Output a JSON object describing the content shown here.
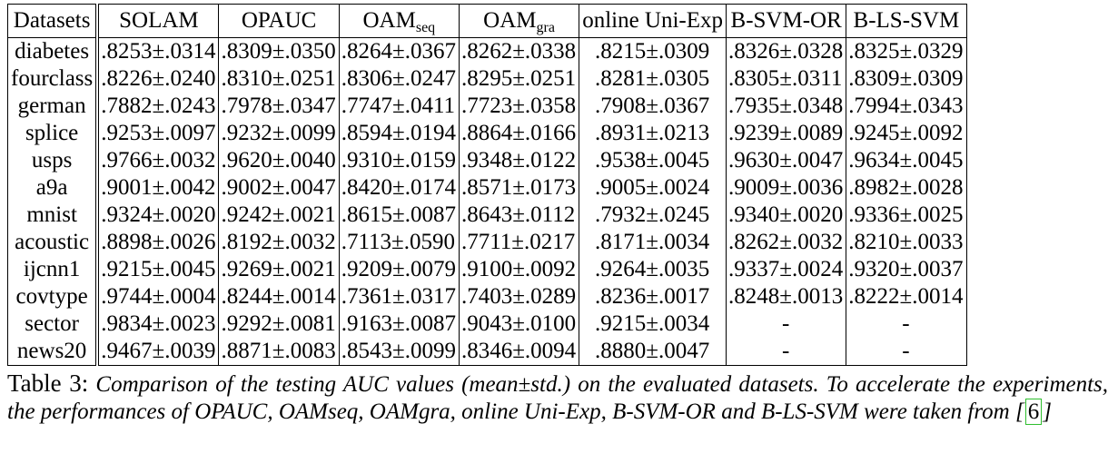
{
  "table": {
    "headers": [
      {
        "main": "Datasets",
        "sub": ""
      },
      {
        "main": "SOLAM",
        "sub": ""
      },
      {
        "main": "OPAUC",
        "sub": ""
      },
      {
        "main": "OAM",
        "sub": "seq"
      },
      {
        "main": "OAM",
        "sub": "gra"
      },
      {
        "main": "online Uni-Exp",
        "sub": ""
      },
      {
        "main": "B-SVM-OR",
        "sub": ""
      },
      {
        "main": "B-LS-SVM",
        "sub": ""
      }
    ],
    "rows": [
      [
        "diabetes",
        ".8253±.0314",
        ".8309±.0350",
        ".8264±.0367",
        ".8262±.0338",
        ".8215±.0309",
        ".8326±.0328",
        ".8325±.0329"
      ],
      [
        "fourclass",
        ".8226±.0240",
        ".8310±.0251",
        ".8306±.0247",
        ".8295±.0251",
        ".8281±.0305",
        ".8305±.0311",
        ".8309±.0309"
      ],
      [
        "german",
        ".7882±.0243",
        ".7978±.0347",
        ".7747±.0411",
        ".7723±.0358",
        ".7908±.0367",
        ".7935±.0348",
        ".7994±.0343"
      ],
      [
        "splice",
        ".9253±.0097",
        ".9232±.0099",
        ".8594±.0194",
        ".8864±.0166",
        ".8931±.0213",
        ".9239±.0089",
        ".9245±.0092"
      ],
      [
        "usps",
        ".9766±.0032",
        ".9620±.0040",
        ".9310±.0159",
        ".9348±.0122",
        ".9538±.0045",
        ".9630±.0047",
        ".9634±.0045"
      ],
      [
        "a9a",
        ".9001±.0042",
        ".9002±.0047",
        ".8420±.0174",
        ".8571±.0173",
        ".9005±.0024",
        ".9009±.0036",
        ".8982±.0028"
      ],
      [
        "mnist",
        ".9324±.0020",
        ".9242±.0021",
        ".8615±.0087",
        ".8643±.0112",
        ".7932±.0245",
        ".9340±.0020",
        ".9336±.0025"
      ],
      [
        "acoustic",
        ".8898±.0026",
        ".8192±.0032",
        ".7113±.0590",
        ".7711±.0217",
        ".8171±.0034",
        ".8262±.0032",
        ".8210±.0033"
      ],
      [
        "ijcnn1",
        ".9215±.0045",
        ".9269±.0021",
        ".9209±.0079",
        ".9100±.0092",
        ".9264±.0035",
        ".9337±.0024",
        ".9320±.0037"
      ],
      [
        "covtype",
        ".9744±.0004",
        ".8244±.0014",
        ".7361±.0317",
        ".7403±.0289",
        ".8236±.0017",
        ".8248±.0013",
        ".8222±.0014"
      ],
      [
        "sector",
        ".9834±.0023",
        ".9292±.0081",
        ".9163±.0087",
        ".9043±.0100",
        ".9215±.0034",
        "-",
        "-"
      ],
      [
        "news20",
        ".9467±.0039",
        ".8871±.0083",
        ".8543±.0099",
        ".8346±.0094",
        ".8880±.0047",
        "-",
        "-"
      ]
    ]
  },
  "caption": {
    "label": "Table 3:",
    "text_before": "Comparison of the testing AUC values (mean±std.) on the evaluated datasets. To accelerate the experiments, the performances of OPAUC, OAMseq, OAMgra, online Uni-Exp, B-SVM-OR and B-LS-SVM were taken from",
    "ref_open": "[",
    "ref": "6",
    "ref_close": "]"
  }
}
